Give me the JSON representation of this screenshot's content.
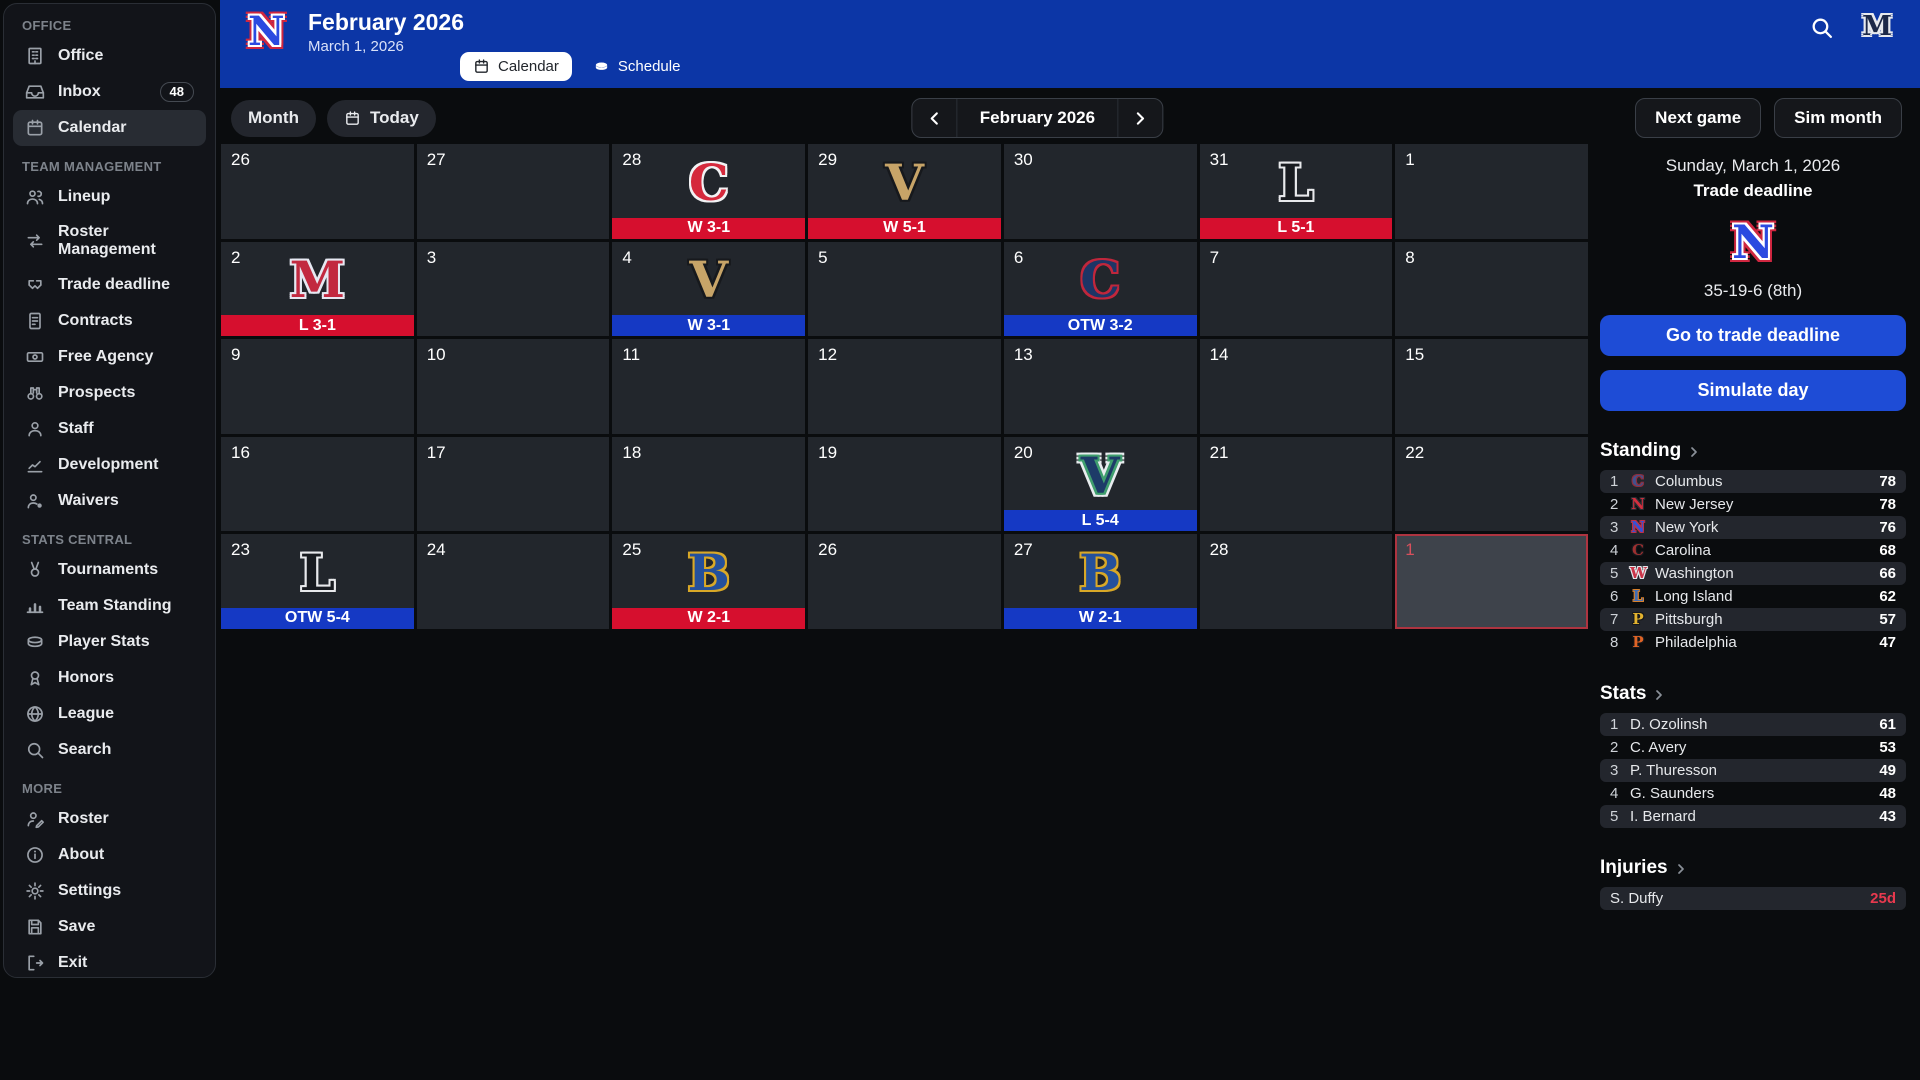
{
  "sidebar": {
    "sections": [
      {
        "label": "OFFICE",
        "items": [
          {
            "label": "Office",
            "icon": "building-icon"
          },
          {
            "label": "Inbox",
            "icon": "inbox-icon",
            "badge": "48"
          },
          {
            "label": "Calendar",
            "icon": "calendar-icon",
            "active": true
          }
        ]
      },
      {
        "label": "TEAM MANAGEMENT",
        "items": [
          {
            "label": "Lineup",
            "icon": "people-icon"
          },
          {
            "label": "Roster Management",
            "icon": "swap-arrows-icon"
          },
          {
            "label": "Trade deadline",
            "icon": "handshake-icon"
          },
          {
            "label": "Contracts",
            "icon": "contract-icon"
          },
          {
            "label": "Free Agency",
            "icon": "banknote-icon"
          },
          {
            "label": "Prospects",
            "icon": "binoculars-icon"
          },
          {
            "label": "Staff",
            "icon": "person-icon"
          },
          {
            "label": "Development",
            "icon": "line-chart-icon"
          },
          {
            "label": "Waivers",
            "icon": "person-dot-icon"
          }
        ]
      },
      {
        "label": "STATS CENTRAL",
        "items": [
          {
            "label": "Tournaments",
            "icon": "medal-icon"
          },
          {
            "label": "Team Standing",
            "icon": "bar-chart-icon"
          },
          {
            "label": "Player Stats",
            "icon": "puck-icon"
          },
          {
            "label": "Honors",
            "icon": "award-icon"
          },
          {
            "label": "League",
            "icon": "globe-icon"
          },
          {
            "label": "Search",
            "icon": "search-icon"
          }
        ]
      },
      {
        "label": "MORE",
        "items": [
          {
            "label": "Roster",
            "icon": "person-edit-icon"
          },
          {
            "label": "About",
            "icon": "info-icon"
          },
          {
            "label": "Settings",
            "icon": "gear-icon"
          },
          {
            "label": "Save",
            "icon": "save-icon"
          },
          {
            "label": "Exit",
            "icon": "exit-icon"
          }
        ]
      }
    ]
  },
  "header": {
    "title": "February 2026",
    "subtitle": "March 1, 2026",
    "team_logo": {
      "letter": "N",
      "fill": "#2b4ae0",
      "inner": "#ffffff",
      "outer": "#cf2740"
    },
    "tabs": [
      {
        "label": "Calendar",
        "icon": "calendar-icon",
        "active": true
      },
      {
        "label": "Schedule",
        "icon": "puck-icon",
        "active": false
      }
    ],
    "right_logo": {
      "letter": "M",
      "fill": "#1c2848",
      "inner": "#e8eaee"
    }
  },
  "toolbar": {
    "view_label": "Month",
    "today_label": "Today",
    "month_label": "February 2026",
    "next_game_label": "Next game",
    "sim_month_label": "Sim month"
  },
  "calendar": {
    "weeks": [
      [
        {
          "day": "26"
        },
        {
          "day": "27"
        },
        {
          "day": "28",
          "result": "W 3-1",
          "bar": "red",
          "letter": "C",
          "fill": "#d5293c",
          "inner": "#f2f2f4"
        },
        {
          "day": "29",
          "result": "W 5-1",
          "bar": "red",
          "letter": "V",
          "fill": "#c7a468",
          "inner": "#17191d"
        },
        {
          "day": "30"
        },
        {
          "day": "31",
          "result": "L 5-1",
          "bar": "red",
          "letter": "L",
          "fill": "#181b20",
          "inner": "#e8e9ec"
        },
        {
          "day": "1"
        }
      ],
      [
        {
          "day": "2",
          "result": "L 3-1",
          "bar": "red",
          "letter": "M",
          "fill": "#c22940",
          "inner": "#e6e8f2"
        },
        {
          "day": "3"
        },
        {
          "day": "4",
          "result": "W 3-1",
          "bar": "blue",
          "letter": "V",
          "fill": "#c7a468",
          "inner": "#17191d"
        },
        {
          "day": "5"
        },
        {
          "day": "6",
          "result": "OTW 3-2",
          "bar": "blue",
          "letter": "C",
          "fill": "#1d3566",
          "inner": "#c0273c"
        },
        {
          "day": "7"
        },
        {
          "day": "8"
        }
      ],
      [
        {
          "day": "9"
        },
        {
          "day": "10"
        },
        {
          "day": "11"
        },
        {
          "day": "12"
        },
        {
          "day": "13"
        },
        {
          "day": "14"
        },
        {
          "day": "15"
        }
      ],
      [
        {
          "day": "16"
        },
        {
          "day": "17"
        },
        {
          "day": "18"
        },
        {
          "day": "19"
        },
        {
          "day": "20",
          "result": "L 5-4",
          "bar": "blue",
          "letter": "V",
          "fill": "#1d3b68",
          "inner": "#3f9e6e",
          "outer": "#e8ecef"
        },
        {
          "day": "21"
        },
        {
          "day": "22"
        }
      ],
      [
        {
          "day": "23",
          "result": "OTW 5-4",
          "bar": "blue",
          "letter": "L",
          "fill": "#181b20",
          "inner": "#e8e9ec"
        },
        {
          "day": "24"
        },
        {
          "day": "25",
          "result": "W 2-1",
          "bar": "red",
          "letter": "B",
          "fill": "#24509c",
          "inner": "#d9a827"
        },
        {
          "day": "26"
        },
        {
          "day": "27",
          "result": "W 2-1",
          "bar": "blue",
          "letter": "B",
          "fill": "#24509c",
          "inner": "#d9a827"
        },
        {
          "day": "28"
        },
        {
          "day": "1",
          "current": true
        }
      ]
    ]
  },
  "panel": {
    "date": "Sunday, March 1, 2026",
    "event": "Trade deadline",
    "logo": {
      "letter": "N",
      "fill": "#2b4ae0",
      "inner": "#ffffff",
      "outer": "#cf2740"
    },
    "record": "35-19-6 (8th)",
    "goto_label": "Go to trade deadline",
    "simulate_label": "Simulate day",
    "standing": {
      "title": "Standing",
      "rows": [
        {
          "rank": "1",
          "team": "Columbus",
          "pts": "78",
          "letter": "C",
          "fill": "#41538f",
          "edge": "#8c2f3f"
        },
        {
          "rank": "2",
          "team": "New Jersey",
          "pts": "78",
          "letter": "N",
          "fill": "#d32f3e",
          "edge": "#2a2d33"
        },
        {
          "rank": "3",
          "team": "New York",
          "pts": "76",
          "letter": "N",
          "fill": "#3353d8",
          "edge": "#c03048"
        },
        {
          "rank": "4",
          "team": "Carolina",
          "pts": "68",
          "letter": "C",
          "fill": "#9c3030",
          "edge": "#16181c"
        },
        {
          "rank": "5",
          "team": "Washington",
          "pts": "66",
          "letter": "W",
          "fill": "#ca3448",
          "edge": "#e4e6ea"
        },
        {
          "rank": "6",
          "team": "Long Island",
          "pts": "62",
          "letter": "L",
          "fill": "#3f6cb4",
          "edge": "#d8812c"
        },
        {
          "rank": "7",
          "team": "Pittsburgh",
          "pts": "57",
          "letter": "P",
          "fill": "#e3b32f",
          "edge": "#16181c"
        },
        {
          "rank": "8",
          "team": "Philadelphia",
          "pts": "47",
          "letter": "P",
          "fill": "#df6426",
          "edge": "#16181c"
        }
      ]
    },
    "stats": {
      "title": "Stats",
      "rows": [
        {
          "rank": "1",
          "name": "D. Ozolinsh",
          "value": "61"
        },
        {
          "rank": "2",
          "name": "C. Avery",
          "value": "53"
        },
        {
          "rank": "3",
          "name": "P. Thuresson",
          "value": "49"
        },
        {
          "rank": "4",
          "name": "G. Saunders",
          "value": "48"
        },
        {
          "rank": "5",
          "name": "I. Bernard",
          "value": "43"
        }
      ]
    },
    "injuries": {
      "title": "Injuries",
      "rows": [
        {
          "name": "S. Duffy",
          "value": "25d"
        }
      ]
    }
  },
  "colors": {
    "header_blue": "#0c36a6",
    "action_blue": "#1e4cd6",
    "result_bar_red": "#d60f2e",
    "result_bar_blue": "#1539c4",
    "injury_red": "#e8394e",
    "current_day_border": "#ae3440"
  }
}
